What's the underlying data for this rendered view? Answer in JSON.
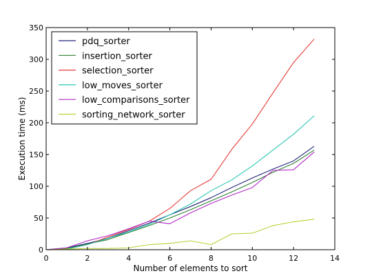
{
  "chart_data": {
    "type": "line",
    "title": "",
    "xlabel": "Number of elements to sort",
    "ylabel": "Execution time (ms)",
    "xlim": [
      0,
      14
    ],
    "ylim": [
      0,
      350
    ],
    "xticks": [
      0,
      2,
      4,
      6,
      8,
      10,
      12,
      14
    ],
    "yticks": [
      0,
      50,
      100,
      150,
      200,
      250,
      300,
      350
    ],
    "grid": false,
    "legend_position": "top-left",
    "x": [
      0,
      1,
      2,
      3,
      4,
      5,
      6,
      7,
      8,
      9,
      10,
      11,
      12,
      13
    ],
    "series": [
      {
        "name": "pdq_sorter",
        "color": "#1f1f7a",
        "values": [
          0,
          3,
          10,
          18,
          30,
          42,
          55,
          68,
          82,
          98,
          113,
          127,
          140,
          163
        ]
      },
      {
        "name": "insertion_sorter",
        "color": "#2e7d32",
        "values": [
          0,
          2,
          9,
          16,
          27,
          38,
          50,
          63,
          77,
          91,
          106,
          122,
          136,
          157
        ]
      },
      {
        "name": "selection_sorter",
        "color": "#e53935",
        "values": [
          0,
          1,
          8,
          20,
          32,
          45,
          65,
          93,
          111,
          158,
          198,
          247,
          295,
          332
        ]
      },
      {
        "name": "low_moves_sorter",
        "color": "#26c6b0",
        "values": [
          0,
          1,
          8,
          18,
          28,
          40,
          55,
          72,
          93,
          110,
          132,
          157,
          182,
          211
        ]
      },
      {
        "name": "low_comparisons_sorter",
        "color": "#b026c4",
        "values": [
          0,
          3,
          14,
          22,
          33,
          45,
          41,
          58,
          73,
          86,
          98,
          125,
          126,
          154
        ]
      },
      {
        "name": "sorting_network_sorter",
        "color": "#b5d334",
        "values": [
          0,
          1,
          2,
          2,
          3,
          8,
          10,
          14,
          8,
          25,
          26,
          38,
          44,
          48
        ]
      }
    ]
  }
}
